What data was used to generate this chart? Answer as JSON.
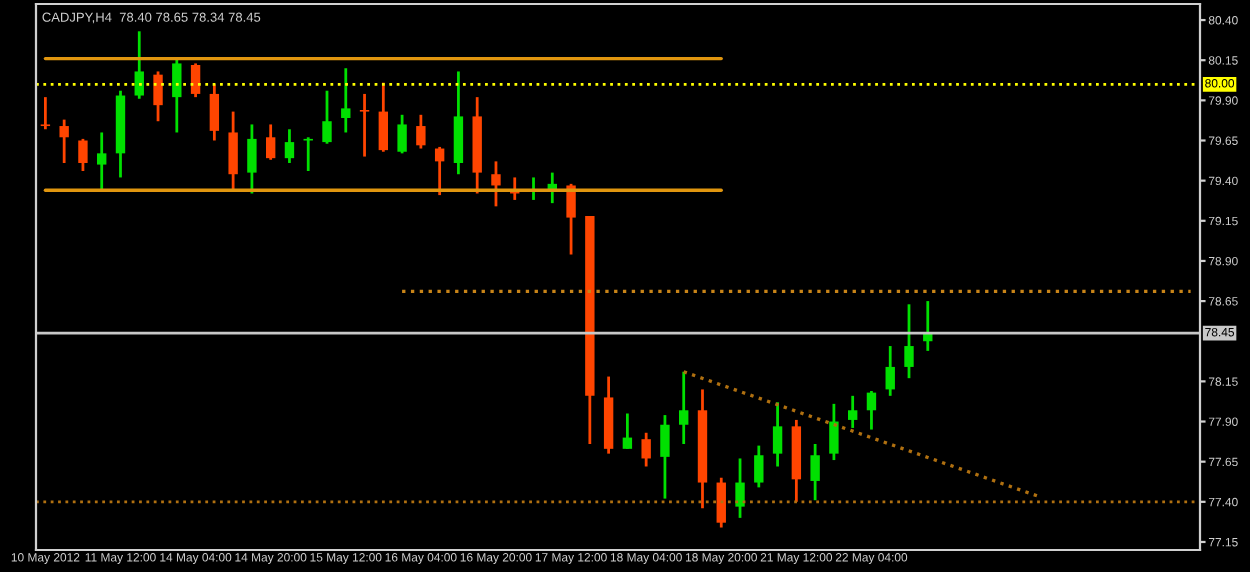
{
  "chart_data": {
    "type": "candlestick",
    "title": "CADJPY,H4  78.40 78.65 78.34 78.45",
    "categories": [
      "10 May 2012",
      null,
      null,
      null,
      "11 May 12:00",
      null,
      null,
      null,
      "14 May 04:00",
      null,
      null,
      null,
      "14 May 20:00",
      null,
      null,
      null,
      "15 May 12:00",
      null,
      null,
      null,
      "16 May 04:00",
      null,
      null,
      null,
      "16 May 20:00",
      null,
      null,
      null,
      "17 May 12:00",
      null,
      null,
      null,
      "18 May 04:00",
      null,
      null,
      null,
      "18 May 20:00",
      null,
      null,
      null,
      "21 May 12:00",
      null,
      null,
      null,
      "22 May 04:00",
      null,
      null,
      null,
      null,
      null,
      null,
      null,
      null,
      null,
      null,
      null,
      null,
      null,
      null,
      null,
      null,
      null
    ],
    "series": [
      {
        "ohlc": [
          [
            79.75,
            79.92,
            79.72,
            79.74
          ],
          [
            79.74,
            79.78,
            79.51,
            79.67
          ],
          [
            79.65,
            79.66,
            79.46,
            79.51
          ],
          [
            79.5,
            79.7,
            79.34,
            79.57
          ],
          [
            79.57,
            79.96,
            79.42,
            79.93
          ],
          [
            79.93,
            80.33,
            79.91,
            80.08
          ],
          [
            80.06,
            80.08,
            79.77,
            79.87
          ],
          [
            79.92,
            80.16,
            79.7,
            80.13
          ],
          [
            80.12,
            80.13,
            79.92,
            79.94
          ],
          [
            79.94,
            80.0,
            79.65,
            79.71
          ],
          [
            79.7,
            79.83,
            79.34,
            79.44
          ],
          [
            79.45,
            79.75,
            79.32,
            79.66
          ],
          [
            79.67,
            79.75,
            79.53,
            79.54
          ],
          [
            79.54,
            79.72,
            79.51,
            79.64
          ],
          [
            79.65,
            79.67,
            79.46,
            79.66
          ],
          [
            79.64,
            79.96,
            79.63,
            79.77
          ],
          [
            79.79,
            80.1,
            79.7,
            79.85
          ],
          [
            79.84,
            79.94,
            79.55,
            79.83
          ],
          [
            79.83,
            80.01,
            79.58,
            79.59
          ],
          [
            79.58,
            79.81,
            79.57,
            79.75
          ],
          [
            79.74,
            79.81,
            79.6,
            79.62
          ],
          [
            79.6,
            79.61,
            79.31,
            79.52
          ],
          [
            79.51,
            80.08,
            79.44,
            79.8
          ],
          [
            79.8,
            79.92,
            79.32,
            79.45
          ],
          [
            79.44,
            79.52,
            79.24,
            79.37
          ],
          [
            79.33,
            79.42,
            79.28,
            79.32
          ],
          [
            79.33,
            79.42,
            79.28,
            79.34
          ],
          [
            79.33,
            79.45,
            79.26,
            79.38
          ],
          [
            79.37,
            79.38,
            78.94,
            79.17
          ],
          [
            79.18,
            79.18,
            77.76,
            78.06
          ],
          [
            78.05,
            78.18,
            77.7,
            77.73
          ],
          [
            77.73,
            77.95,
            77.73,
            77.8
          ],
          [
            77.79,
            77.83,
            77.62,
            77.67
          ],
          [
            77.68,
            77.94,
            77.42,
            77.88
          ],
          [
            77.88,
            78.21,
            77.76,
            77.97
          ],
          [
            77.97,
            78.1,
            77.36,
            77.52
          ],
          [
            77.52,
            77.55,
            77.24,
            77.27
          ],
          [
            77.37,
            77.67,
            77.3,
            77.52
          ],
          [
            77.52,
            77.75,
            77.49,
            77.69
          ],
          [
            77.7,
            78.02,
            77.62,
            77.87
          ],
          [
            77.87,
            77.91,
            77.4,
            77.54
          ],
          [
            77.53,
            77.76,
            77.41,
            77.69
          ],
          [
            77.7,
            78.01,
            77.66,
            77.9
          ],
          [
            77.91,
            78.06,
            77.86,
            77.97
          ],
          [
            77.97,
            78.09,
            77.85,
            78.08
          ],
          [
            78.1,
            78.37,
            78.06,
            78.24
          ],
          [
            78.24,
            78.63,
            78.17,
            78.37
          ],
          [
            78.4,
            78.65,
            78.34,
            78.45
          ],
          null,
          null,
          null,
          null,
          null,
          null,
          null,
          null,
          null,
          null,
          null,
          null,
          null,
          null
        ],
        "colors": [
          "#ff4500",
          "#ff4500",
          "#ff4500",
          "#00e000",
          "#00e000",
          "#00e000",
          "#ff4500",
          "#00e000",
          "#ff4500",
          "#ff4500",
          "#ff4500",
          "#00e000",
          "#ff4500",
          "#00e000",
          "#00e000",
          "#00e000",
          "#00e000",
          "#ff4500",
          "#ff4500",
          "#00e000",
          "#ff4500",
          "#ff4500",
          "#00e000",
          "#ff4500",
          "#ff4500",
          "#ff4500",
          "#00e000",
          "#00e000",
          "#ff4500",
          "#ff4500",
          "#ff4500",
          "#00e000",
          "#ff4500",
          "#00e000",
          "#00e000",
          "#ff4500",
          "#ff4500",
          "#00e000",
          "#00e000",
          "#00e000",
          "#ff4500",
          "#00e000",
          "#00e000",
          "#00e000",
          "#00e000",
          "#00e000",
          "#00e000",
          "#00e000",
          null,
          null,
          null,
          null,
          null,
          null,
          null,
          null,
          null,
          null,
          null,
          null,
          null,
          null
        ]
      },
      {
        "type": "line",
        "color": "#e0960f",
        "line_style": "solid",
        "values": [
          80.16,
          80.16,
          80.16,
          80.16,
          80.16,
          80.16,
          80.16,
          80.16,
          80.16,
          80.16,
          80.16,
          80.16,
          80.16,
          80.16,
          80.16,
          80.16,
          80.16,
          80.16,
          80.16,
          80.16,
          80.16,
          80.16,
          80.16,
          80.16,
          80.16,
          80.16,
          80.16,
          80.16,
          80.16,
          80.16,
          80.16,
          80.16,
          80.16,
          80.16,
          80.16,
          80.16,
          80.16,
          null,
          null,
          null,
          null,
          null,
          null,
          null,
          null,
          null,
          null,
          null,
          null,
          null,
          null,
          null,
          null,
          null,
          null,
          null,
          null,
          null,
          null,
          null,
          null,
          null
        ]
      },
      {
        "type": "line",
        "color": "#e0960f",
        "line_style": "solid",
        "values": [
          79.34,
          79.34,
          79.34,
          79.34,
          79.34,
          79.34,
          79.34,
          79.34,
          79.34,
          79.34,
          79.34,
          79.34,
          79.34,
          79.34,
          79.34,
          79.34,
          79.34,
          79.34,
          79.34,
          79.34,
          79.34,
          79.34,
          79.34,
          79.34,
          79.34,
          79.34,
          79.34,
          79.34,
          79.34,
          79.34,
          79.34,
          79.34,
          79.34,
          79.34,
          79.34,
          79.34,
          79.34,
          null,
          null,
          null,
          null,
          null,
          null,
          null,
          null,
          null,
          null,
          null,
          null,
          null,
          null,
          null,
          null,
          null,
          null,
          null,
          null,
          null,
          null,
          null,
          null,
          null
        ]
      },
      {
        "type": "line",
        "color": "#c88418",
        "line_style": "dotted",
        "values": [
          null,
          null,
          null,
          null,
          null,
          null,
          null,
          null,
          null,
          null,
          null,
          null,
          null,
          null,
          null,
          null,
          null,
          null,
          null,
          78.71,
          78.71,
          78.71,
          78.71,
          78.71,
          78.71,
          78.71,
          78.71,
          78.71,
          78.71,
          78.71,
          78.71,
          78.71,
          78.71,
          78.71,
          78.71,
          78.71,
          78.71,
          78.71,
          78.71,
          78.71,
          78.71,
          78.71,
          78.71,
          78.71,
          78.71,
          78.71,
          78.71,
          78.71,
          78.71,
          78.71,
          78.71,
          78.71,
          78.71,
          78.71,
          78.71,
          78.71,
          78.71,
          78.71,
          78.71,
          78.71,
          78.71,
          78.71
        ]
      },
      {
        "type": "line",
        "color": "#b07010",
        "line_style": "dotted",
        "values": [
          null,
          null,
          null,
          null,
          null,
          null,
          null,
          null,
          null,
          null,
          null,
          null,
          null,
          null,
          null,
          null,
          null,
          null,
          null,
          null,
          null,
          null,
          null,
          null,
          null,
          null,
          null,
          null,
          null,
          null,
          null,
          null,
          null,
          null,
          78.21,
          null,
          null,
          null,
          null,
          null,
          null,
          null,
          null,
          null,
          null,
          null,
          null,
          null,
          null,
          null,
          null,
          null,
          null,
          77.43,
          null,
          null,
          null,
          null,
          null,
          null,
          null,
          null
        ]
      }
    ],
    "ref_lines": [
      {
        "axis": "y",
        "value": 80.0,
        "label": "80.00",
        "color": "#ffff00",
        "line_style": "dotted"
      },
      {
        "axis": "y",
        "value": 78.45,
        "label": "78.45",
        "color": "#c8c8c8",
        "line_style": "solid"
      },
      {
        "axis": "y",
        "value": 77.4,
        "label": null,
        "color": "#b07010",
        "line_style": "dotted"
      }
    ],
    "ylim": [
      77.1,
      80.5
    ],
    "yticks": [
      {
        "value": 80.4,
        "label": "80.40"
      },
      {
        "value": 80.15,
        "label": "80.15"
      },
      {
        "value": 79.9,
        "label": "79.90"
      },
      {
        "value": 79.65,
        "label": "79.65"
      },
      {
        "value": 79.4,
        "label": "79.40"
      },
      {
        "value": 79.15,
        "label": "79.15"
      },
      {
        "value": 78.9,
        "label": "78.90"
      },
      {
        "value": 78.65,
        "label": "78.65"
      },
      {
        "value": 78.15,
        "label": "78.15"
      },
      {
        "value": 77.9,
        "label": "77.90"
      },
      {
        "value": 77.65,
        "label": "77.65"
      },
      {
        "value": 77.4,
        "label": "77.40"
      },
      {
        "value": 77.15,
        "label": "77.15"
      }
    ],
    "grid": false,
    "legend": false
  }
}
